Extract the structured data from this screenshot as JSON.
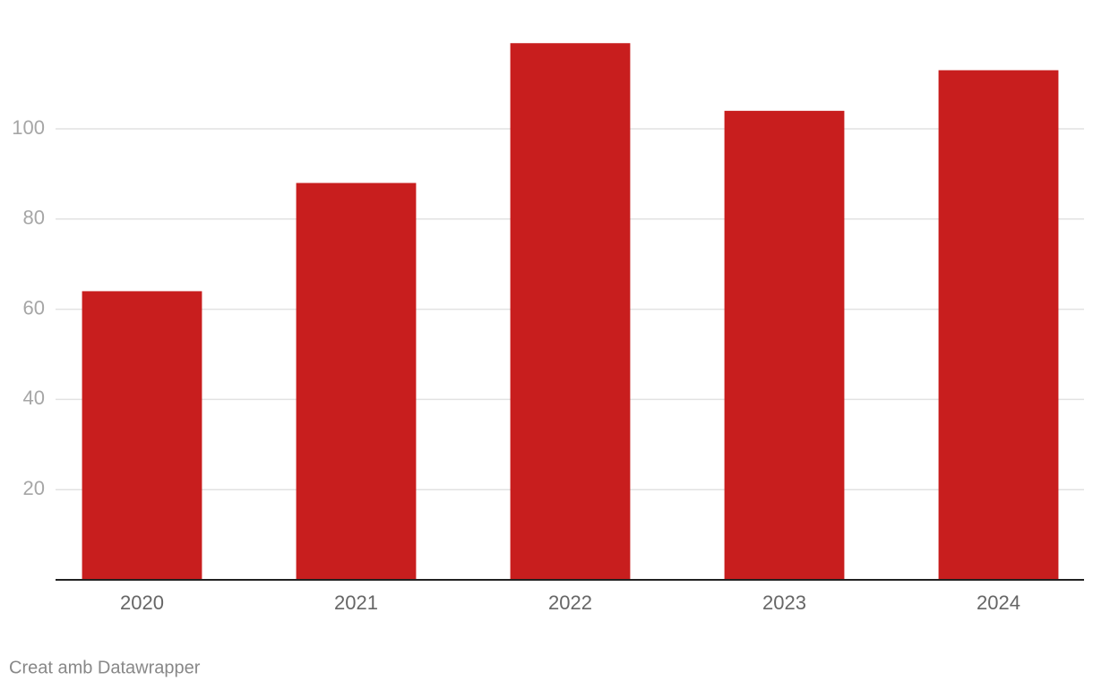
{
  "chart_data": {
    "type": "bar",
    "categories": [
      "2020",
      "2021",
      "2022",
      "2023",
      "2024"
    ],
    "values": [
      64,
      88,
      119,
      104,
      113
    ],
    "color": "#c81e1e",
    "ylim": [
      0,
      120
    ],
    "yticks": [
      20,
      40,
      60,
      80,
      100
    ],
    "grid": true,
    "footer": "Creat amb Datawrapper"
  }
}
